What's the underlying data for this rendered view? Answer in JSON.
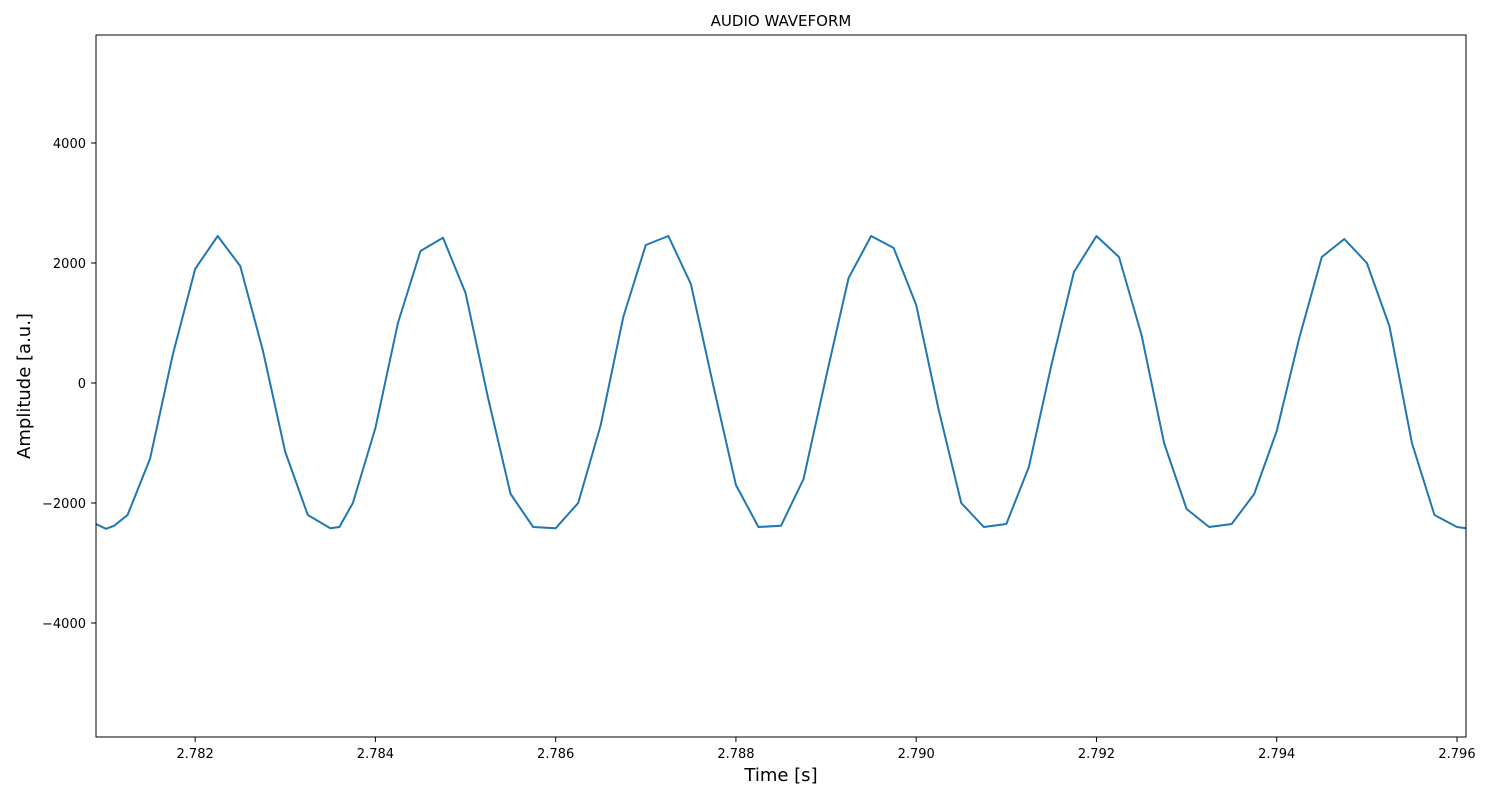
{
  "chart_data": {
    "type": "line",
    "title": "AUDIO WAVEFORM",
    "xlabel": "Time [s]",
    "ylabel": "Amplitude [a.u.]",
    "xlim": [
      2.7809,
      2.7961
    ],
    "ylim": [
      -5900,
      5800
    ],
    "x_ticks": [
      2.782,
      2.784,
      2.786,
      2.788,
      2.79,
      2.792,
      2.794,
      2.796
    ],
    "x_tick_labels": [
      "2.782",
      "2.784",
      "2.786",
      "2.788",
      "2.790",
      "2.792",
      "2.794",
      "2.796"
    ],
    "y_ticks": [
      -4000,
      -2000,
      0,
      2000,
      4000
    ],
    "y_tick_labels": [
      "−4000",
      "−2000",
      "0",
      "2000",
      "4000"
    ],
    "grid": false,
    "colors": {
      "line": "#1f77b4",
      "axes": "#000000",
      "background": "#ffffff"
    },
    "series": [
      {
        "x": [
          2.7809,
          2.78101,
          2.7811,
          2.78125,
          2.7815,
          2.78175,
          2.782,
          2.78225,
          2.7825,
          2.78275,
          2.783,
          2.78325,
          2.7835,
          2.7836,
          2.78375,
          2.784,
          2.78425,
          2.7845,
          2.78475,
          2.785,
          2.78525,
          2.7855,
          2.78575,
          2.786,
          2.78625,
          2.7865,
          2.78675,
          2.787,
          2.78725,
          2.7875,
          2.78775,
          2.788,
          2.78825,
          2.7885,
          2.78875,
          2.789,
          2.78925,
          2.7895,
          2.78975,
          2.79,
          2.79025,
          2.7905,
          2.79075,
          2.791,
          2.79125,
          2.7915,
          2.79175,
          2.792,
          2.79225,
          2.7925,
          2.79275,
          2.793,
          2.79325,
          2.7935,
          2.79375,
          2.794,
          2.79425,
          2.7945,
          2.79475,
          2.795,
          2.79525,
          2.7955,
          2.79575,
          2.796,
          2.7961
        ],
        "y": [
          -2350,
          -2430,
          -2380,
          -2200,
          -1260,
          460,
          1900,
          2450,
          1950,
          550,
          -1150,
          -2200,
          -2420,
          -2400,
          -2000,
          -750,
          1000,
          2200,
          2420,
          1500,
          -250,
          -1850,
          -2400,
          -2420,
          -2000,
          -700,
          1100,
          2300,
          2450,
          1650,
          -50,
          -1700,
          -2400,
          -2380,
          -1600,
          100,
          1750,
          2450,
          2250,
          1300,
          -450,
          -2000,
          -2400,
          -2350,
          -1400,
          300,
          1850,
          2450,
          2100,
          800,
          -1000,
          -2100,
          -2400,
          -2350,
          -1850,
          -800,
          750,
          2100,
          2400,
          2000,
          950,
          -1000,
          -2200,
          -2400,
          -2420
        ]
      }
    ]
  }
}
